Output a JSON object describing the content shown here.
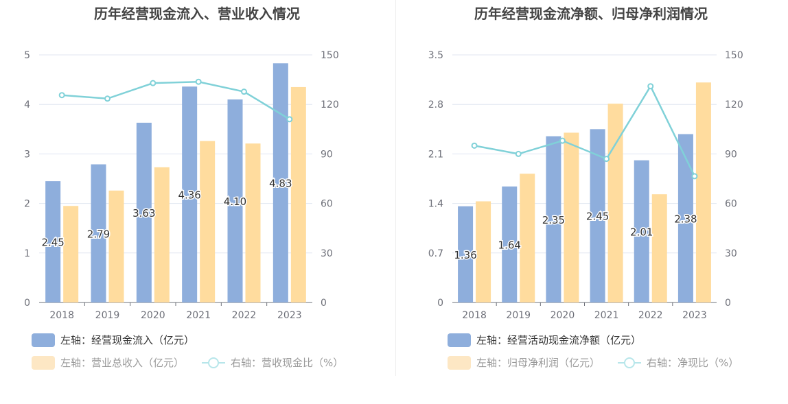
{
  "colors": {
    "bar_primary": "#8eaedc",
    "bar_secondary": "#ffdc9e",
    "line": "#80d1d8",
    "legend_inactive_swatch": "#fde7c4",
    "legend_inactive_line": "#b7e6ea",
    "legend_active_text": "#333333",
    "legend_inactive_text": "#999999"
  },
  "chart_data": [
    {
      "type": "bar+line",
      "title": "历年经营现金流入、营业收入情况",
      "categories": [
        "2018",
        "2019",
        "2020",
        "2021",
        "2022",
        "2023"
      ],
      "left_axis": {
        "ylim": [
          0,
          5
        ],
        "ticks": [
          "0",
          "1",
          "2",
          "3",
          "4",
          "5"
        ]
      },
      "right_axis": {
        "ylim": [
          0,
          150
        ],
        "ticks": [
          "0",
          "30",
          "60",
          "90",
          "120",
          "150"
        ]
      },
      "series": [
        {
          "name": "左轴：经营现金流入（亿元）",
          "type": "bar",
          "axis": "left",
          "values": [
            2.45,
            2.79,
            3.63,
            4.36,
            4.1,
            4.83
          ],
          "labels": [
            "2.45",
            "2.79",
            "3.63",
            "4.36",
            "4.10",
            "4.83"
          ]
        },
        {
          "name": "左轴：营业总收入（亿元）",
          "type": "bar",
          "axis": "left",
          "values": [
            1.95,
            2.26,
            2.73,
            3.26,
            3.21,
            4.35
          ]
        },
        {
          "name": "右轴：营收现金比（%）",
          "type": "line",
          "axis": "right",
          "values": [
            125.6,
            123.5,
            132.9,
            133.7,
            127.7,
            111.0
          ]
        }
      ],
      "legend": {
        "placement": "bottom-left"
      },
      "grid": true
    },
    {
      "type": "bar+line",
      "title": "历年经营现金流净额、归母净利润情况",
      "categories": [
        "2018",
        "2019",
        "2020",
        "2021",
        "2022",
        "2023"
      ],
      "left_axis": {
        "ylim": [
          0,
          3.5
        ],
        "ticks": [
          "0",
          "0.7",
          "1.4",
          "2.1",
          "2.8",
          "3.5"
        ]
      },
      "right_axis": {
        "ylim": [
          0,
          150
        ],
        "ticks": [
          "0",
          "30",
          "60",
          "90",
          "120",
          "150"
        ]
      },
      "series": [
        {
          "name": "左轴：经营活动现金流净额（亿元）",
          "type": "bar",
          "axis": "left",
          "values": [
            1.36,
            1.64,
            2.35,
            2.45,
            2.01,
            2.38
          ],
          "labels": [
            "1.36",
            "1.64",
            "2.35",
            "2.45",
            "2.01",
            "2.38"
          ]
        },
        {
          "name": "左轴：归母净利润（亿元）",
          "type": "bar",
          "axis": "left",
          "values": [
            1.43,
            1.82,
            2.4,
            2.81,
            1.53,
            3.11
          ]
        },
        {
          "name": "右轴：净现比（%）",
          "type": "line",
          "axis": "right",
          "values": [
            95.0,
            90.0,
            98.0,
            87.0,
            131.0,
            76.5
          ]
        }
      ],
      "legend": {
        "placement": "bottom-left"
      },
      "grid": true
    }
  ]
}
